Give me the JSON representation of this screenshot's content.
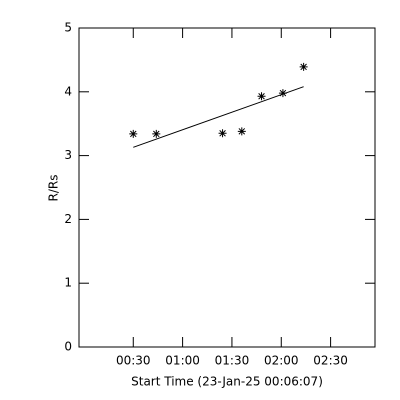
{
  "chart_data": {
    "type": "scatter",
    "x_label": "Start Time (23-Jan-25 00:06:07)",
    "y_label": "R/Rs",
    "x": [
      30,
      44,
      84.3,
      96,
      108,
      121,
      133.6
    ],
    "values": [
      3.34,
      3.34,
      3.35,
      3.38,
      3.93,
      3.98,
      4.39
    ],
    "color": "#000000",
    "fit_line": {
      "x": [
        30,
        133.6
      ],
      "y": [
        3.13,
        4.08
      ]
    },
    "xlim": [
      -3,
      177
    ],
    "xticks": [
      {
        "value": 30,
        "label": "00:30"
      },
      {
        "value": 60,
        "label": "01:00"
      },
      {
        "value": 90,
        "label": "01:30"
      },
      {
        "value": 120,
        "label": "02:00"
      },
      {
        "value": 150,
        "label": "02:30"
      }
    ],
    "ylim": [
      0,
      5
    ],
    "yticks": [
      0,
      1,
      2,
      3,
      4,
      5
    ]
  }
}
